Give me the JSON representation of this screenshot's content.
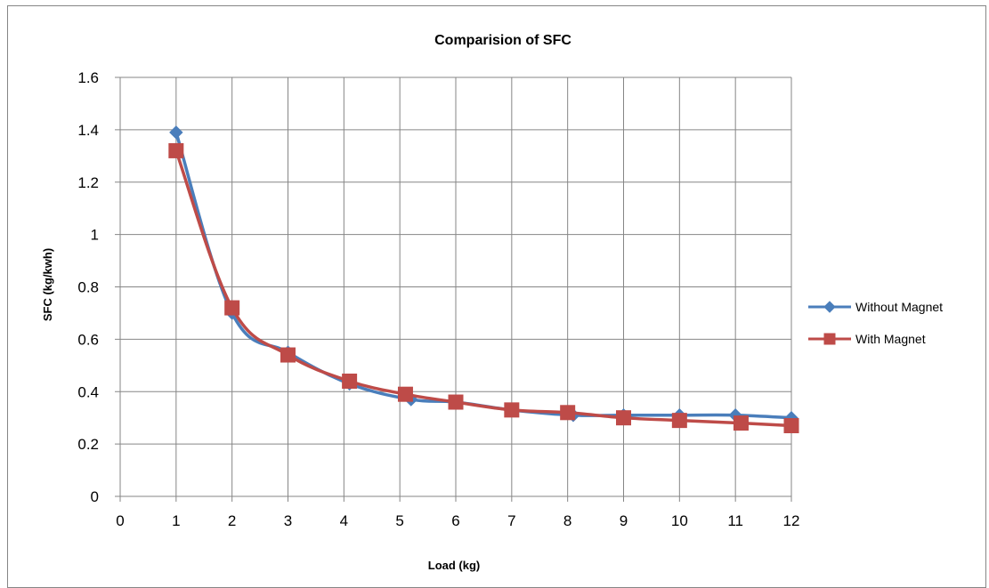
{
  "chart_data": {
    "type": "line",
    "title": "Comparision of SFC",
    "xlabel": "Load (kg)",
    "ylabel": "SFC (kg/kwh)",
    "xlim": [
      0,
      12
    ],
    "ylim": [
      0,
      1.6
    ],
    "x_ticks": [
      "0",
      "1",
      "2",
      "3",
      "4",
      "5",
      "6",
      "7",
      "8",
      "9",
      "10",
      "11",
      "12"
    ],
    "y_ticks": [
      "0",
      "0.2",
      "0.4",
      "0.6",
      "0.8",
      "1",
      "1.2",
      "1.4",
      "1.6"
    ],
    "grid": true,
    "smooth": true,
    "legend_position": "right",
    "series": [
      {
        "name": "Without Magnet",
        "color": "#4a7ebb",
        "marker": "diamond",
        "x": [
          1,
          2,
          3,
          4.1,
          5.2,
          6,
          7,
          8.1,
          9,
          10,
          11,
          12
        ],
        "y": [
          1.39,
          0.7,
          0.55,
          0.43,
          0.37,
          0.36,
          0.33,
          0.31,
          0.31,
          0.31,
          0.31,
          0.3
        ]
      },
      {
        "name": "With Magnet",
        "color": "#be4b48",
        "marker": "square",
        "x": [
          1,
          2,
          3,
          4.1,
          5.1,
          6,
          7,
          8,
          9,
          10,
          11.1,
          12
        ],
        "y": [
          1.32,
          0.72,
          0.54,
          0.44,
          0.39,
          0.36,
          0.33,
          0.32,
          0.3,
          0.29,
          0.28,
          0.27
        ]
      }
    ]
  }
}
